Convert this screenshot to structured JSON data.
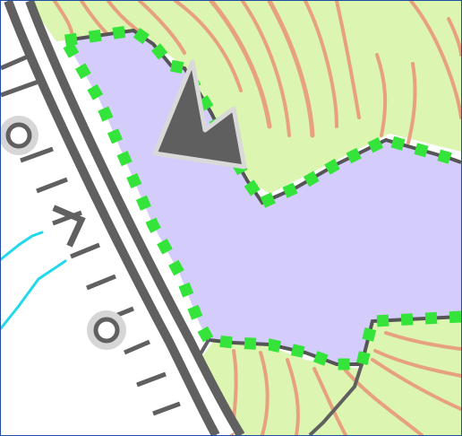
{
  "map": {
    "colors": {
      "area_fill": "#d4ccfa",
      "boundary_dash": "#35e43a",
      "boundary_line": "#555555",
      "vegetation": "#dcf5b0",
      "contour": "#e7a17f",
      "water": "#24d8ec",
      "rail_dark": "#606060",
      "peak_symbol": "#5f5f5f",
      "marker_ring": "#d6d6d6"
    },
    "icons": [
      "peak-icon",
      "station-marker-icon",
      "direction-chevron-icon"
    ]
  }
}
